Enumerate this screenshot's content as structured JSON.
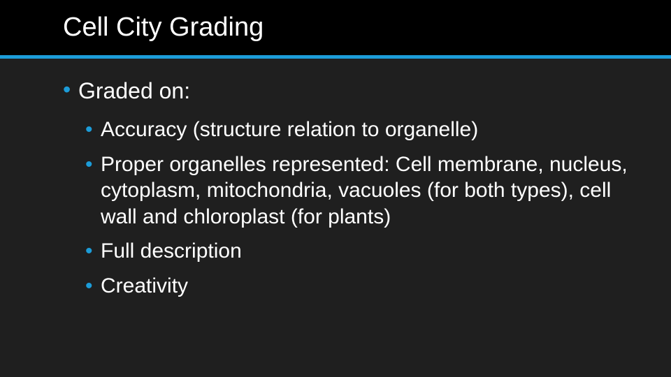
{
  "colors": {
    "background": "#1f1f1f",
    "header_bg": "#000000",
    "divider": "#1c9cd8",
    "bullet": "#1c9cd8",
    "text": "#ffffff"
  },
  "title": "Cell City Grading",
  "title_fontsize": 38,
  "bullets": {
    "l1_fontsize": 32,
    "l2_fontsize": 30,
    "items": [
      "Graded on:"
    ],
    "sub_items": [
      "Accuracy (structure relation to organelle)",
      "Proper organelles represented: Cell membrane, nucleus, cytoplasm, mitochondria, vacuoles (for both types), cell wall and chloroplast (for plants)",
      "Full description",
      "Creativity"
    ]
  }
}
